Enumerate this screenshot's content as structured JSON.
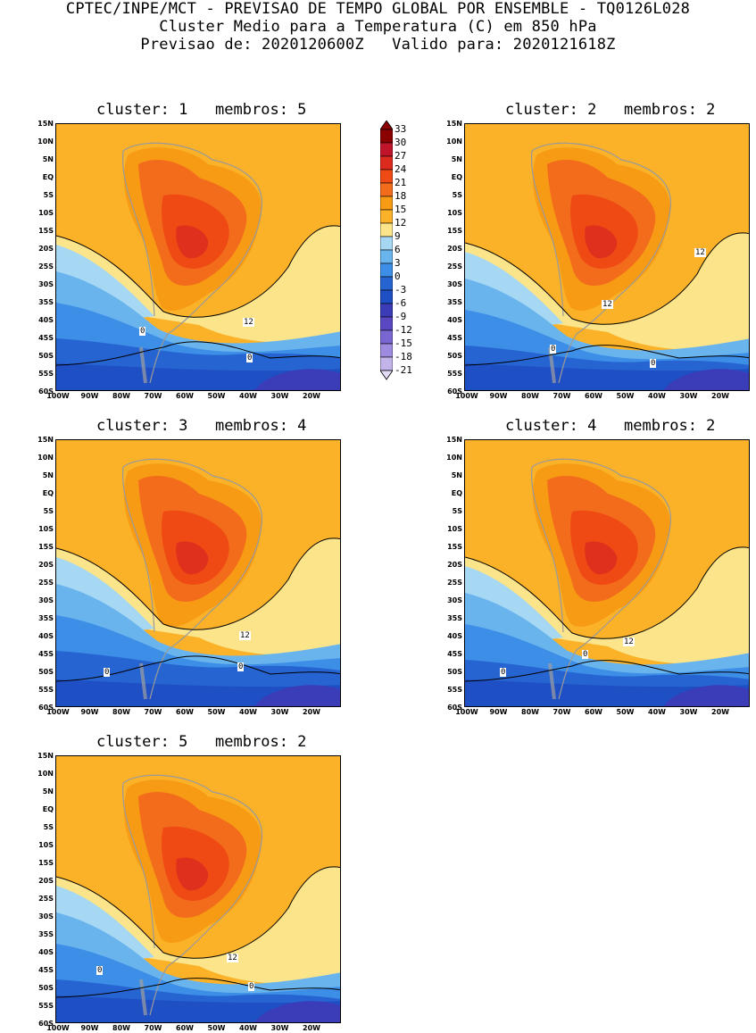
{
  "header": {
    "line1": "CPTEC/INPE/MCT - PREVISAO DE TEMPO GLOBAL POR ENSEMBLE - TQ0126L028",
    "line2": "Cluster Medio para a Temperatura (C) em 850 hPa",
    "line3": "Previsao de: 2020120600Z   Valido para: 2020121618Z"
  },
  "axes": {
    "lat_labels": [
      "15N",
      "10N",
      "5N",
      "EQ",
      "5S",
      "10S",
      "15S",
      "20S",
      "25S",
      "30S",
      "35S",
      "40S",
      "45S",
      "50S",
      "55S",
      "60S"
    ],
    "lon_labels": [
      "100W",
      "90W",
      "80W",
      "70W",
      "60W",
      "50W",
      "40W",
      "30W",
      "20W"
    ]
  },
  "colorbar": {
    "levels": [
      "33",
      "30",
      "27",
      "24",
      "21",
      "18",
      "15",
      "12",
      "9",
      "6",
      "3",
      "0",
      "-3",
      "-6",
      "-9",
      "-12",
      "-15",
      "-18",
      "-21"
    ],
    "colors": [
      "#8b0000",
      "#c0142a",
      "#dc2a1e",
      "#ef4a14",
      "#f36c1c",
      "#f79a14",
      "#fbb228",
      "#fbe48a",
      "#a6d8f4",
      "#6ab4ee",
      "#3d8ee6",
      "#2664d2",
      "#1f4fc4",
      "#3b3cb8",
      "#5a48c2",
      "#7a66d0",
      "#9e8ade",
      "#c2b4ea",
      "#e4dcf6"
    ]
  },
  "clusters": [
    {
      "title": "cluster: 1   membros: 5",
      "contours": [
        "12",
        "0",
        "0"
      ]
    },
    {
      "title": "cluster: 2   membros: 2",
      "contours": [
        "12",
        "12",
        "0",
        "0"
      ]
    },
    {
      "title": "cluster: 3   membros: 4",
      "contours": [
        "12",
        "0",
        "0"
      ]
    },
    {
      "title": "cluster: 4   membros: 2",
      "contours": [
        "12",
        "0",
        "0"
      ]
    },
    {
      "title": "cluster: 5   membros: 2",
      "contours": [
        "12",
        "0",
        "0"
      ]
    }
  ]
}
